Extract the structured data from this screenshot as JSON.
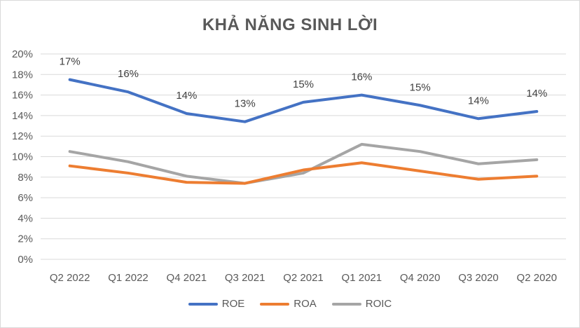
{
  "chart_data": {
    "type": "line",
    "title": "KHẢ NĂNG SINH LỜI",
    "categories": [
      "Q2 2022",
      "Q1 2022",
      "Q4 2021",
      "Q3 2021",
      "Q2 2021",
      "Q1 2021",
      "Q4 2020",
      "Q3 2020",
      "Q2 2020"
    ],
    "ylim": [
      0,
      0.2
    ],
    "ytick_labels": [
      "0%",
      "2%",
      "4%",
      "6%",
      "8%",
      "10%",
      "12%",
      "14%",
      "16%",
      "18%",
      "20%"
    ],
    "grid": true,
    "legend_position": "bottom",
    "series": [
      {
        "name": "ROE",
        "color": "#4472c4",
        "values": [
          0.175,
          0.163,
          0.142,
          0.134,
          0.153,
          0.16,
          0.15,
          0.137,
          0.144
        ],
        "data_labels": [
          "17%",
          "16%",
          "14%",
          "13%",
          "15%",
          "16%",
          "15%",
          "14%",
          "14%"
        ]
      },
      {
        "name": "ROA",
        "color": "#ed7d31",
        "values": [
          0.091,
          0.084,
          0.075,
          0.074,
          0.087,
          0.094,
          0.086,
          0.078,
          0.081
        ]
      },
      {
        "name": "ROIC",
        "color": "#a5a5a5",
        "values": [
          0.105,
          0.095,
          0.081,
          0.074,
          0.084,
          0.112,
          0.105,
          0.093,
          0.097
        ]
      }
    ]
  }
}
